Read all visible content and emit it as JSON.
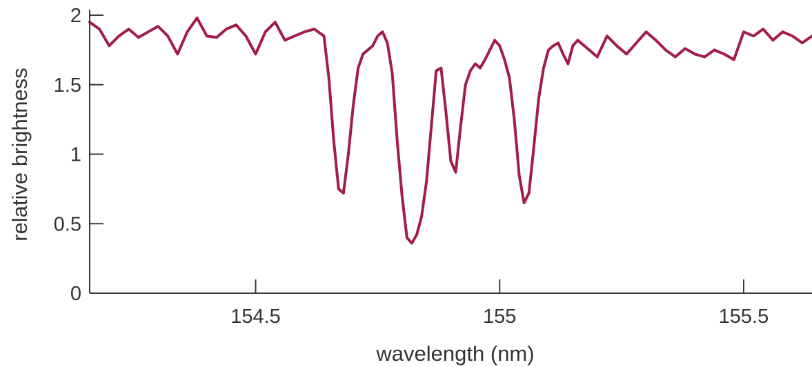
{
  "chart_data": {
    "type": "line",
    "title": "",
    "xlabel": "wavelength (nm)",
    "ylabel": "relative brightness",
    "xlim": [
      154.16,
      155.64
    ],
    "ylim": [
      0,
      2
    ],
    "x_ticks": [
      154.5,
      155,
      155.5
    ],
    "x_tick_labels": [
      "154.5",
      "155",
      "155.5"
    ],
    "y_ticks": [
      0,
      0.5,
      1,
      1.5,
      2
    ],
    "y_tick_labels": [
      "0",
      "0.5",
      "1",
      "1.5",
      "2"
    ],
    "grid": false,
    "legend": "none",
    "colors": {
      "line": "#a21d47",
      "axis": "#3a3a3a",
      "text": "#333333"
    },
    "series": [
      {
        "x": [
          154.16,
          154.18,
          154.2,
          154.22,
          154.24,
          154.26,
          154.28,
          154.3,
          154.32,
          154.34,
          154.36,
          154.38,
          154.4,
          154.42,
          154.44,
          154.46,
          154.48,
          154.5,
          154.52,
          154.54,
          154.56,
          154.58,
          154.6,
          154.62,
          154.64,
          154.65,
          154.66,
          154.67,
          154.68,
          154.69,
          154.7,
          154.71,
          154.72,
          154.73,
          154.74,
          154.75,
          154.76,
          154.77,
          154.78,
          154.79,
          154.8,
          154.81,
          154.82,
          154.83,
          154.84,
          154.85,
          154.86,
          154.87,
          154.88,
          154.89,
          154.9,
          154.91,
          154.92,
          154.93,
          154.94,
          154.95,
          154.96,
          154.97,
          154.98,
          154.99,
          155.0,
          155.01,
          155.02,
          155.03,
          155.04,
          155.05,
          155.06,
          155.07,
          155.08,
          155.09,
          155.1,
          155.11,
          155.12,
          155.13,
          155.14,
          155.15,
          155.16,
          155.18,
          155.2,
          155.22,
          155.24,
          155.26,
          155.28,
          155.3,
          155.32,
          155.34,
          155.36,
          155.38,
          155.4,
          155.42,
          155.44,
          155.46,
          155.48,
          155.5,
          155.52,
          155.54,
          155.56,
          155.58,
          155.6,
          155.62,
          155.64
        ],
        "values": [
          1.95,
          1.9,
          1.78,
          1.85,
          1.9,
          1.84,
          1.88,
          1.92,
          1.85,
          1.72,
          1.88,
          1.98,
          1.85,
          1.84,
          1.9,
          1.93,
          1.85,
          1.72,
          1.88,
          1.95,
          1.82,
          1.85,
          1.88,
          1.9,
          1.85,
          1.55,
          1.1,
          0.75,
          0.72,
          1.0,
          1.35,
          1.62,
          1.72,
          1.75,
          1.78,
          1.85,
          1.88,
          1.8,
          1.58,
          1.1,
          0.7,
          0.4,
          0.36,
          0.42,
          0.55,
          0.8,
          1.2,
          1.6,
          1.62,
          1.3,
          0.95,
          0.87,
          1.2,
          1.5,
          1.6,
          1.65,
          1.62,
          1.68,
          1.75,
          1.82,
          1.78,
          1.68,
          1.55,
          1.25,
          0.85,
          0.65,
          0.72,
          1.05,
          1.4,
          1.62,
          1.75,
          1.78,
          1.8,
          1.72,
          1.65,
          1.78,
          1.82,
          1.76,
          1.7,
          1.85,
          1.78,
          1.72,
          1.8,
          1.88,
          1.82,
          1.75,
          1.7,
          1.76,
          1.72,
          1.7,
          1.75,
          1.72,
          1.68,
          1.88,
          1.85,
          1.9,
          1.82,
          1.88,
          1.85,
          1.8,
          1.85
        ]
      }
    ]
  }
}
